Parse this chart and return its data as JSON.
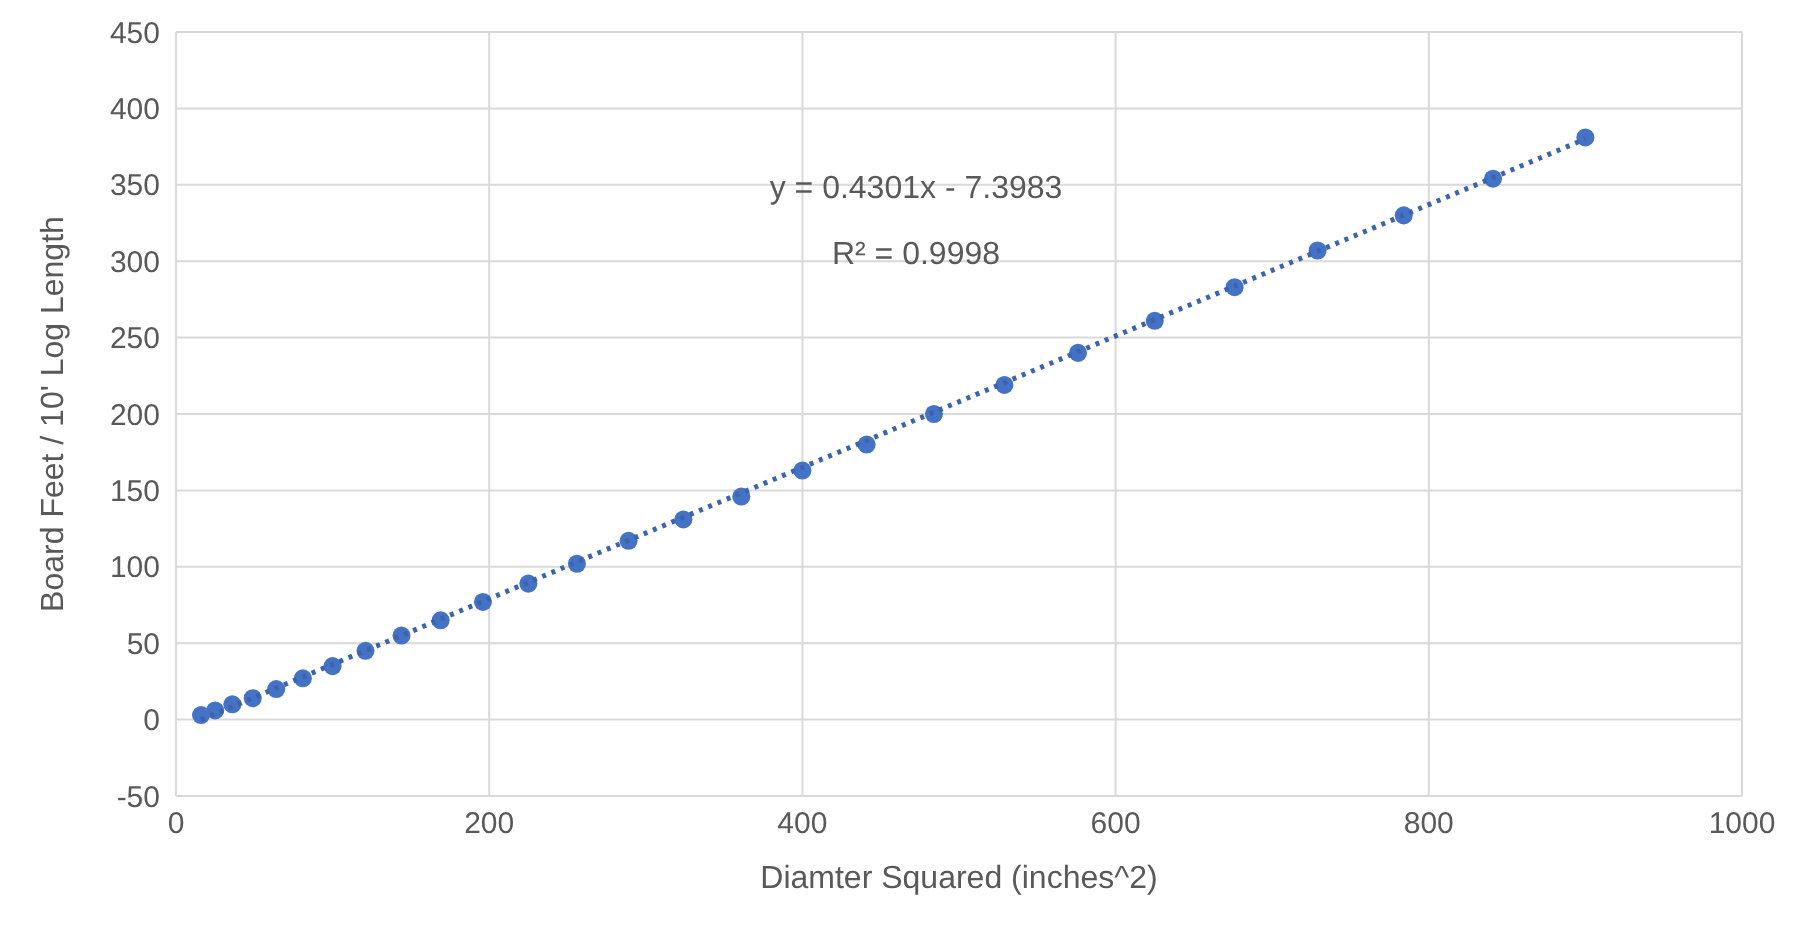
{
  "chart_data": {
    "type": "scatter",
    "xlabel": "Diamter Squared (inches^2)",
    "ylabel": "Board Feet  / 10' Log  Length",
    "annotations": [
      "y = 0.4301x - 7.3983",
      "R² = 0.9998"
    ],
    "xlim": [
      0,
      1000
    ],
    "xticks": [
      0,
      200,
      400,
      600,
      800,
      1000
    ],
    "ylim": [
      -50,
      450
    ],
    "yticks": [
      -50,
      0,
      50,
      100,
      150,
      200,
      250,
      300,
      350,
      400,
      450
    ],
    "grid": true,
    "series": [
      {
        "marker": "circle",
        "color": "#4472c4",
        "x": [
          16,
          25,
          36,
          49,
          64,
          81,
          100,
          121,
          144,
          169,
          196,
          225,
          256,
          289,
          324,
          361,
          400,
          441,
          484,
          529,
          576,
          625,
          676,
          729,
          784,
          841,
          900
        ],
        "values": [
          3,
          6,
          10,
          14,
          20,
          27,
          35,
          45,
          55,
          65,
          77,
          89,
          102,
          117,
          131,
          146,
          163,
          180,
          200,
          219,
          240,
          261,
          283,
          307,
          330,
          354,
          381
        ]
      },
      {
        "type": "line",
        "marker": "none",
        "color": "#3b64ad",
        "line_style": "dotted",
        "x": [
          16,
          900
        ],
        "values": [
          0,
          380
        ]
      }
    ]
  }
}
